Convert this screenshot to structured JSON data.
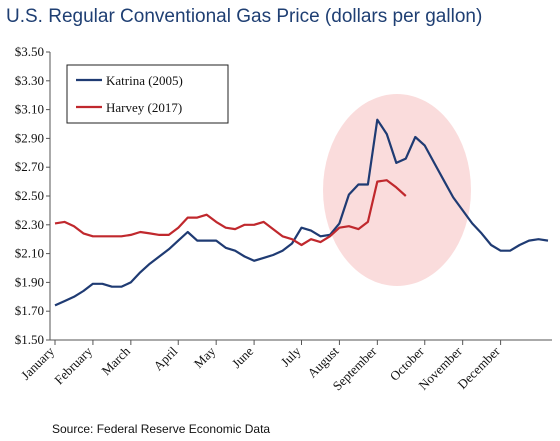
{
  "chart_data": {
    "type": "line",
    "title": "U.S. Regular Conventional Gas Price (dollars per gallon)",
    "source": "Source: Federal Reserve Economic Data",
    "categories": [
      "January",
      null,
      null,
      null,
      "February",
      null,
      null,
      null,
      "March",
      null,
      null,
      null,
      null,
      "April",
      null,
      null,
      null,
      "May",
      null,
      null,
      null,
      "June",
      null,
      null,
      null,
      null,
      "July",
      null,
      null,
      null,
      "August",
      null,
      null,
      null,
      "September",
      null,
      null,
      null,
      null,
      "October",
      null,
      null,
      null,
      "November",
      null,
      null,
      null,
      "December",
      null,
      null,
      null,
      null,
      null
    ],
    "series": [
      {
        "name": "Katrina (2005)",
        "color": "#1f3b73",
        "values": [
          1.74,
          1.77,
          1.8,
          1.84,
          1.89,
          1.89,
          1.87,
          1.87,
          1.9,
          1.97,
          2.03,
          2.08,
          2.13,
          2.19,
          2.25,
          2.19,
          2.19,
          2.19,
          2.14,
          2.12,
          2.08,
          2.05,
          2.07,
          2.09,
          2.12,
          2.17,
          2.28,
          2.26,
          2.22,
          2.23,
          2.31,
          2.51,
          2.58,
          2.58,
          3.03,
          2.93,
          2.73,
          2.76,
          2.91,
          2.85,
          2.73,
          2.61,
          2.49,
          2.4,
          2.31,
          2.24,
          2.16,
          2.12,
          2.12,
          2.16,
          2.19,
          2.2,
          2.19
        ]
      },
      {
        "name": "Harvey (2017)",
        "color": "#c0282d",
        "values": [
          2.31,
          2.32,
          2.29,
          2.24,
          2.22,
          2.22,
          2.22,
          2.22,
          2.23,
          2.25,
          2.24,
          2.23,
          2.23,
          2.28,
          2.35,
          2.35,
          2.37,
          2.32,
          2.28,
          2.27,
          2.3,
          2.3,
          2.32,
          2.27,
          2.22,
          2.2,
          2.16,
          2.2,
          2.18,
          2.22,
          2.28,
          2.29,
          2.27,
          2.32,
          2.6,
          2.61,
          2.56,
          2.5,
          null,
          null,
          null,
          null,
          null,
          null,
          null,
          null,
          null,
          null,
          null,
          null,
          null,
          null,
          null
        ]
      }
    ],
    "ylim": [
      1.5,
      3.5
    ],
    "yticks": [
      {
        "value": 1.5,
        "label": "$1.50"
      },
      {
        "value": 1.7,
        "label": "$1.70"
      },
      {
        "value": 1.9,
        "label": "$1.90"
      },
      {
        "value": 2.1,
        "label": "$2.10"
      },
      {
        "value": 2.3,
        "label": "$2.30"
      },
      {
        "value": 2.5,
        "label": "$2.50"
      },
      {
        "value": 2.7,
        "label": "$2.70"
      },
      {
        "value": 2.9,
        "label": "$2.90"
      },
      {
        "value": 3.1,
        "label": "$3.10"
      },
      {
        "value": 3.3,
        "label": "$3.30"
      },
      {
        "value": 3.5,
        "label": "$3.50"
      }
    ],
    "grid": false,
    "legend": "upper left"
  }
}
